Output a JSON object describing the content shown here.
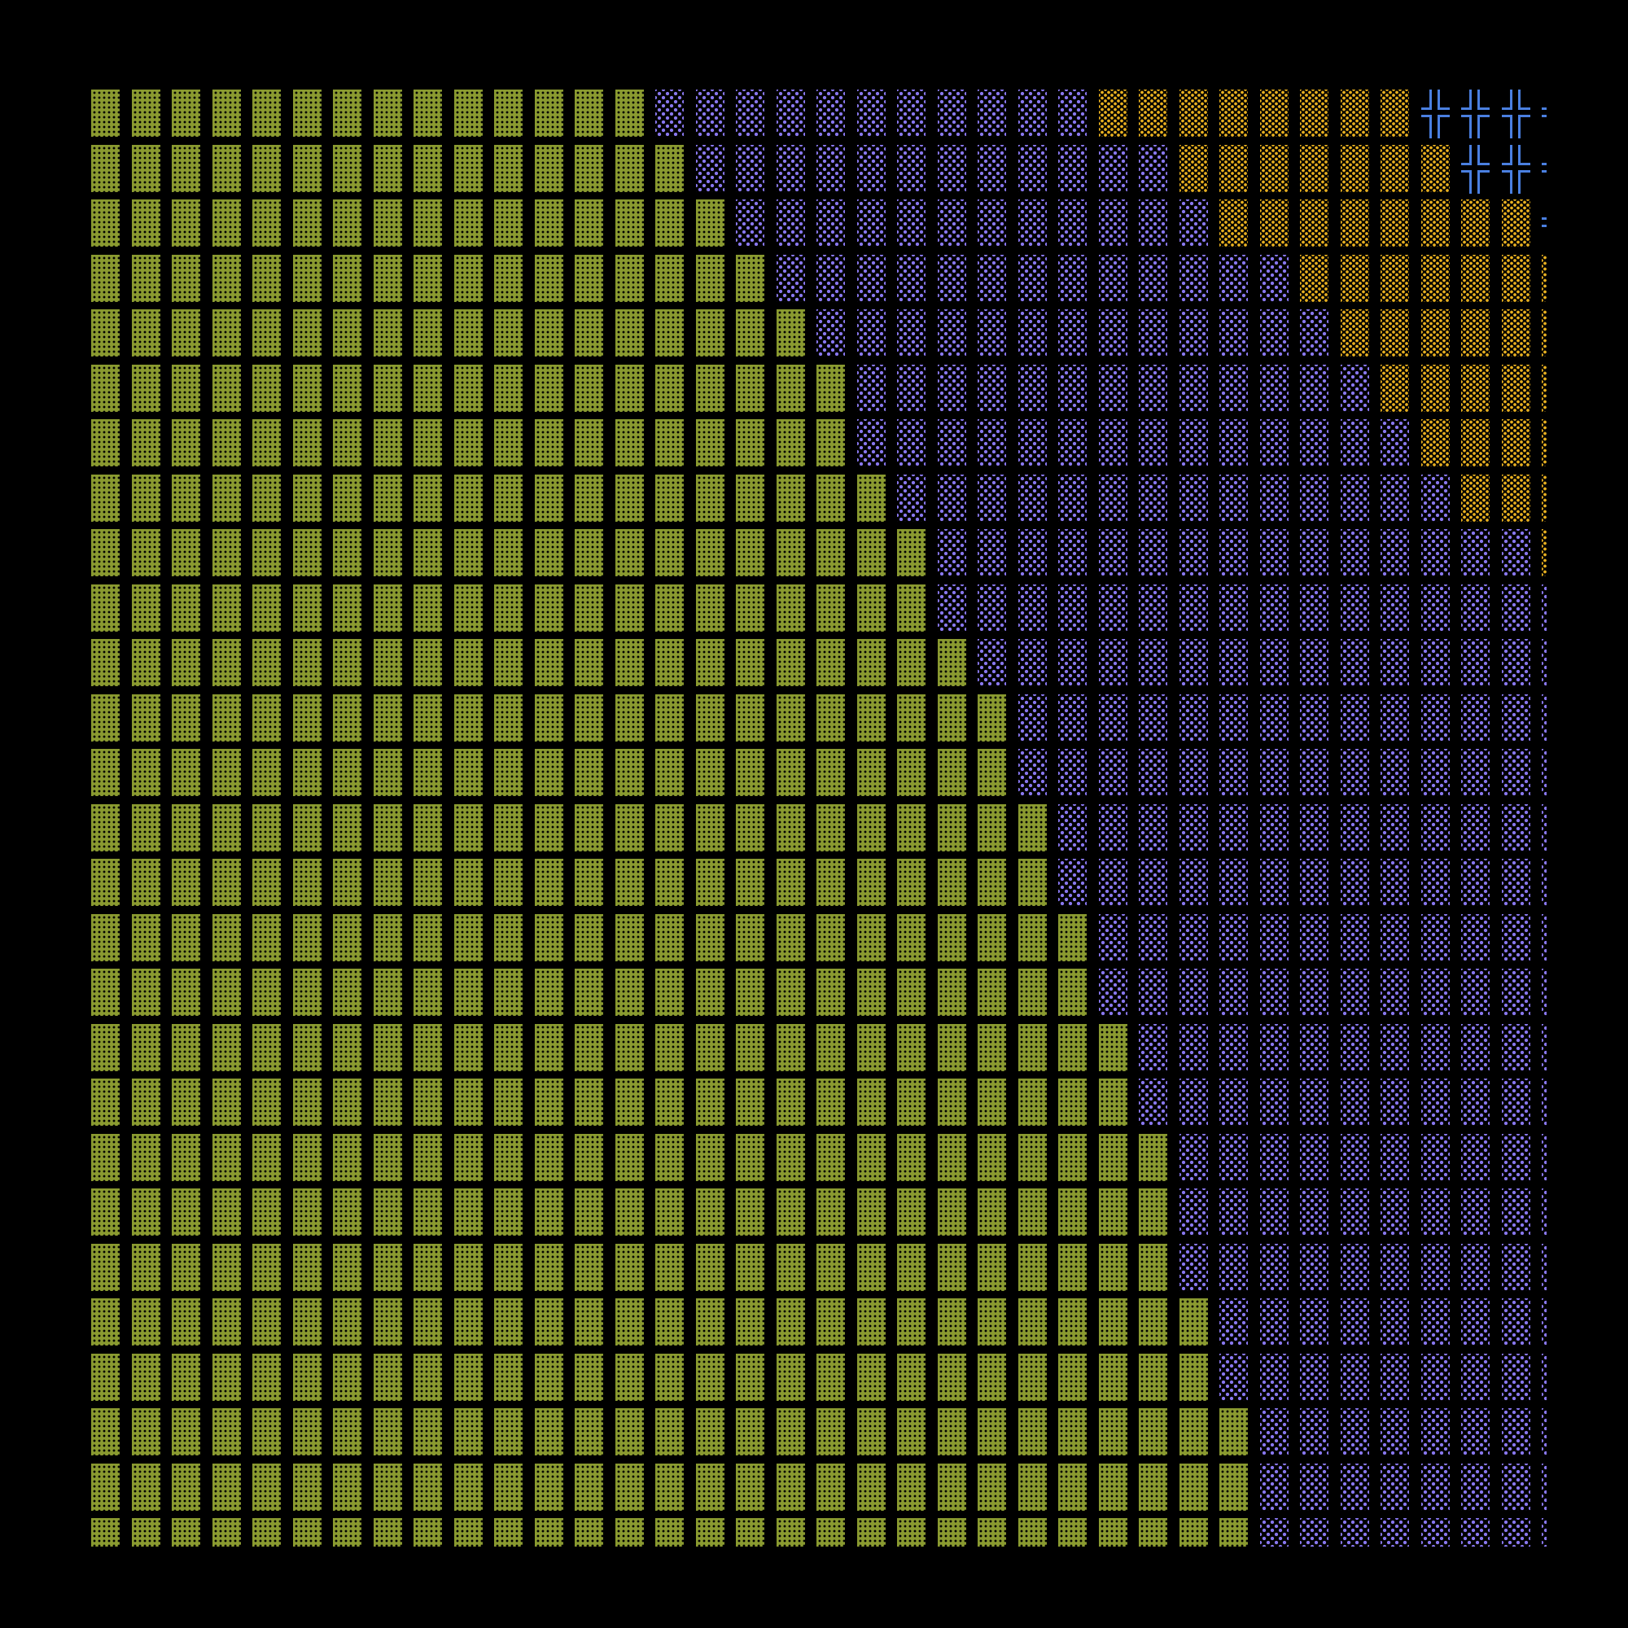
{
  "terminal": {
    "background": "#000000",
    "colors": {
      "▓": "#8a9a30",
      "░": "#8877ee",
      "▒": "#e8b020",
      "╬": "#4a7fe0"
    },
    "glyph_names": {
      "▓": "dark-shade",
      "░": "light-shade",
      "▒": "medium-shade",
      "╬": "box-cross"
    },
    "rows": [
      "▓▓▓▓▓▓▓▓▓▓▓▓▓▓░░░░░░░░░░░▒▒▒▒▒▒▒▒╬╬╬╬",
      "▓▓▓▓▓▓▓▓▓▓▓▓▓▓▓░░░░░░░░░░░░▒▒▒▒▒▒▒╬╬╬",
      "▓▓▓▓▓▓▓▓▓▓▓▓▓▓▓▓░░░░░░░░░░░░▒▒▒▒▒▒▒▒╬",
      "▓▓▓▓▓▓▓▓▓▓▓▓▓▓▓▓▓░░░░░░░░░░░░░▒▒▒▒▒▒▒",
      "▓▓▓▓▓▓▓▓▓▓▓▓▓▓▓▓▓▓░░░░░░░░░░░░░▒▒▒▒▒▒",
      "▓▓▓▓▓▓▓▓▓▓▓▓▓▓▓▓▓▓▓░░░░░░░░░░░░░▒▒▒▒▒",
      "▓▓▓▓▓▓▓▓▓▓▓▓▓▓▓▓▓▓▓░░░░░░░░░░░░░░▒▒▒▒",
      "▓▓▓▓▓▓▓▓▓▓▓▓▓▓▓▓▓▓▓▓░░░░░░░░░░░░░░▒▒▒",
      "▓▓▓▓▓▓▓▓▓▓▓▓▓▓▓▓▓▓▓▓▓░░░░░░░░░░░░░░░▒",
      "▓▓▓▓▓▓▓▓▓▓▓▓▓▓▓▓▓▓▓▓▓░░░░░░░░░░░░░░░░",
      "▓▓▓▓▓▓▓▓▓▓▓▓▓▓▓▓▓▓▓▓▓▓░░░░░░░░░░░░░░░",
      "▓▓▓▓▓▓▓▓▓▓▓▓▓▓▓▓▓▓▓▓▓▓▓░░░░░░░░░░░░░░",
      "▓▓▓▓▓▓▓▓▓▓▓▓▓▓▓▓▓▓▓▓▓▓▓░░░░░░░░░░░░░░",
      "▓▓▓▓▓▓▓▓▓▓▓▓▓▓▓▓▓▓▓▓▓▓▓▓░░░░░░░░░░░░░",
      "▓▓▓▓▓▓▓▓▓▓▓▓▓▓▓▓▓▓▓▓▓▓▓▓░░░░░░░░░░░░░",
      "▓▓▓▓▓▓▓▓▓▓▓▓▓▓▓▓▓▓▓▓▓▓▓▓▓░░░░░░░░░░░░",
      "▓▓▓▓▓▓▓▓▓▓▓▓▓▓▓▓▓▓▓▓▓▓▓▓▓░░░░░░░░░░░░",
      "▓▓▓▓▓▓▓▓▓▓▓▓▓▓▓▓▓▓▓▓▓▓▓▓▓▓░░░░░░░░░░░",
      "▓▓▓▓▓▓▓▓▓▓▓▓▓▓▓▓▓▓▓▓▓▓▓▓▓▓░░░░░░░░░░░",
      "▓▓▓▓▓▓▓▓▓▓▓▓▓▓▓▓▓▓▓▓▓▓▓▓▓▓▓░░░░░░░░░░",
      "▓▓▓▓▓▓▓▓▓▓▓▓▓▓▓▓▓▓▓▓▓▓▓▓▓▓▓░░░░░░░░░░",
      "▓▓▓▓▓▓▓▓▓▓▓▓▓▓▓▓▓▓▓▓▓▓▓▓▓▓▓░░░░░░░░░░",
      "▓▓▓▓▓▓▓▓▓▓▓▓▓▓▓▓▓▓▓▓▓▓▓▓▓▓▓▓░░░░░░░░░",
      "▓▓▓▓▓▓▓▓▓▓▓▓▓▓▓▓▓▓▓▓▓▓▓▓▓▓▓▓░░░░░░░░░",
      "▓▓▓▓▓▓▓▓▓▓▓▓▓▓▓▓▓▓▓▓▓▓▓▓▓▓▓▓▓░░░░░░░░",
      "▓▓▓▓▓▓▓▓▓▓▓▓▓▓▓▓▓▓▓▓▓▓▓▓▓▓▓▓▓░░░░░░░░",
      "▓▓▓▓▓▓▓▓▓▓▓▓▓▓▓▓▓▓▓▓▓▓▓▓▓▓▓▓▓░░░░░░░░"
    ]
  }
}
